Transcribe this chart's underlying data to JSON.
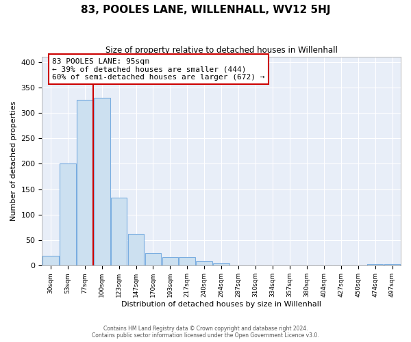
{
  "title": "83, POOLES LANE, WILLENHALL, WV12 5HJ",
  "subtitle": "Size of property relative to detached houses in Willenhall",
  "xlabel": "Distribution of detached houses by size in Willenhall",
  "ylabel": "Number of detached properties",
  "bin_labels": [
    "30sqm",
    "53sqm",
    "77sqm",
    "100sqm",
    "123sqm",
    "147sqm",
    "170sqm",
    "193sqm",
    "217sqm",
    "240sqm",
    "264sqm",
    "287sqm",
    "310sqm",
    "334sqm",
    "357sqm",
    "380sqm",
    "404sqm",
    "427sqm",
    "450sqm",
    "474sqm",
    "497sqm"
  ],
  "bar_values": [
    19,
    200,
    325,
    330,
    134,
    62,
    25,
    17,
    16,
    9,
    5,
    1,
    0,
    0,
    0,
    0,
    0,
    0,
    0,
    3,
    3
  ],
  "bar_color": "#cce0f0",
  "bar_edge_color": "#7aade0",
  "property_line_color": "#cc0000",
  "annotation_text": "83 POOLES LANE: 95sqm\n← 39% of detached houses are smaller (444)\n60% of semi-detached houses are larger (672) →",
  "annotation_box_color": "white",
  "annotation_box_edge": "#cc0000",
  "ylim": [
    0,
    410
  ],
  "yticks": [
    0,
    50,
    100,
    150,
    200,
    250,
    300,
    350,
    400
  ],
  "footer_text": "Contains HM Land Registry data © Crown copyright and database right 2024.\nContains public sector information licensed under the Open Government Licence v3.0.",
  "bg_color": "white",
  "plot_bg_color": "#e8eef8",
  "grid_color": "#ffffff"
}
